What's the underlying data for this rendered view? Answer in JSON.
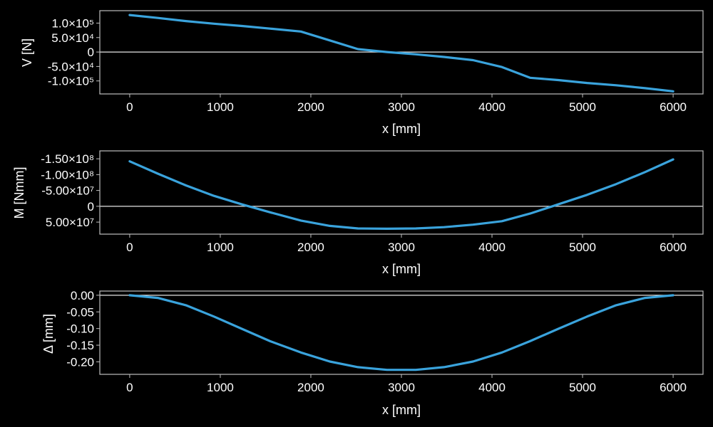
{
  "figure": {
    "background": "#000000",
    "line_color": "#3aa3dc",
    "axis_color": "#bdbdbd",
    "text_color": "#ffffff",
    "zero_line_color": "#e6e6e6"
  },
  "chart_data": [
    {
      "id": "shear",
      "type": "line",
      "xlabel": "x [mm]",
      "ylabel": "V [N]",
      "xlim": [
        -330,
        6330
      ],
      "ylim": [
        -145000,
        143000
      ],
      "y_inverted": false,
      "grid": false,
      "zero_line": true,
      "x_ticks": [
        {
          "v": 0,
          "label": "0"
        },
        {
          "v": 1000,
          "label": "1000"
        },
        {
          "v": 2000,
          "label": "2000"
        },
        {
          "v": 3000,
          "label": "3000"
        },
        {
          "v": 4000,
          "label": "4000"
        },
        {
          "v": 5000,
          "label": "5000"
        },
        {
          "v": 6000,
          "label": "6000"
        }
      ],
      "y_ticks": [
        {
          "v": 100000,
          "label": "1.0×10⁵"
        },
        {
          "v": 50000,
          "label": "5.0×10⁴"
        },
        {
          "v": 0,
          "label": "0"
        },
        {
          "v": -50000,
          "label": "-5.0×10⁴"
        },
        {
          "v": -100000,
          "label": "-1.0×10⁵"
        }
      ],
      "series": [
        {
          "x": [
            0,
            310,
            620,
            930,
            1240,
            1550,
            1890,
            2210,
            2520,
            2840,
            3160,
            3470,
            3790,
            4110,
            4420,
            4730,
            5050,
            5370,
            5690,
            6000
          ],
          "y": [
            128000,
            118000,
            107000,
            98000,
            90000,
            81000,
            71000,
            40000,
            10000,
            0,
            -8000,
            -17000,
            -28000,
            -52000,
            -89000,
            -97000,
            -107000,
            -115000,
            -125000,
            -136000
          ]
        }
      ]
    },
    {
      "id": "moment",
      "type": "line",
      "xlabel": "x [mm]",
      "ylabel": "M [Nmm]",
      "xlim": [
        -330,
        6330
      ],
      "ylim": [
        -175000000,
        88000000
      ],
      "y_inverted": true,
      "grid": false,
      "zero_line": true,
      "x_ticks": [
        {
          "v": 0,
          "label": "0"
        },
        {
          "v": 1000,
          "label": "1000"
        },
        {
          "v": 2000,
          "label": "2000"
        },
        {
          "v": 3000,
          "label": "3000"
        },
        {
          "v": 4000,
          "label": "4000"
        },
        {
          "v": 5000,
          "label": "5000"
        },
        {
          "v": 6000,
          "label": "6000"
        }
      ],
      "y_ticks": [
        {
          "v": -150000000,
          "label": "-1.50×10⁸"
        },
        {
          "v": -100000000,
          "label": "-1.00×10⁸"
        },
        {
          "v": -50000000,
          "label": "-5.00×10⁷"
        },
        {
          "v": 0,
          "label": "0"
        },
        {
          "v": 50000000,
          "label": "5.00×10⁷"
        }
      ],
      "series": [
        {
          "x": [
            0,
            310,
            620,
            930,
            1240,
            1550,
            1890,
            2210,
            2520,
            2840,
            3160,
            3470,
            3790,
            4110,
            4420,
            4730,
            5050,
            5370,
            5690,
            6000
          ],
          "y": [
            -142000000,
            -103000000,
            -66000000,
            -33000000,
            -6000000,
            19000000,
            45000000,
            62000000,
            70000000,
            71000000,
            70000000,
            66000000,
            58000000,
            47000000,
            23000000,
            -6000000,
            -36000000,
            -70000000,
            -108000000,
            -148000000
          ]
        }
      ]
    },
    {
      "id": "deflection",
      "type": "line",
      "xlabel": "x [mm]",
      "ylabel": "Δ [mm]",
      "xlim": [
        -330,
        6330
      ],
      "ylim": [
        -0.2375,
        0.0125
      ],
      "y_inverted": false,
      "grid": false,
      "zero_line": true,
      "x_ticks": [
        {
          "v": 0,
          "label": "0"
        },
        {
          "v": 1000,
          "label": "1000"
        },
        {
          "v": 2000,
          "label": "2000"
        },
        {
          "v": 3000,
          "label": "3000"
        },
        {
          "v": 4000,
          "label": "4000"
        },
        {
          "v": 5000,
          "label": "5000"
        },
        {
          "v": 6000,
          "label": "6000"
        }
      ],
      "y_ticks": [
        {
          "v": 0,
          "label": "0.00"
        },
        {
          "v": -0.05,
          "label": "-0.05"
        },
        {
          "v": -0.1,
          "label": "-0.10"
        },
        {
          "v": -0.15,
          "label": "-0.15"
        },
        {
          "v": -0.2,
          "label": "-0.20"
        }
      ],
      "series": [
        {
          "x": [
            0,
            310,
            620,
            930,
            1240,
            1550,
            1890,
            2210,
            2520,
            2840,
            3160,
            3470,
            3790,
            4110,
            4420,
            4730,
            5050,
            5370,
            5690,
            6000
          ],
          "y": [
            0,
            -0.008,
            -0.03,
            -0.064,
            -0.101,
            -0.138,
            -0.172,
            -0.199,
            -0.216,
            -0.224,
            -0.224,
            -0.216,
            -0.199,
            -0.172,
            -0.138,
            -0.101,
            -0.064,
            -0.03,
            -0.008,
            0
          ]
        }
      ]
    }
  ]
}
